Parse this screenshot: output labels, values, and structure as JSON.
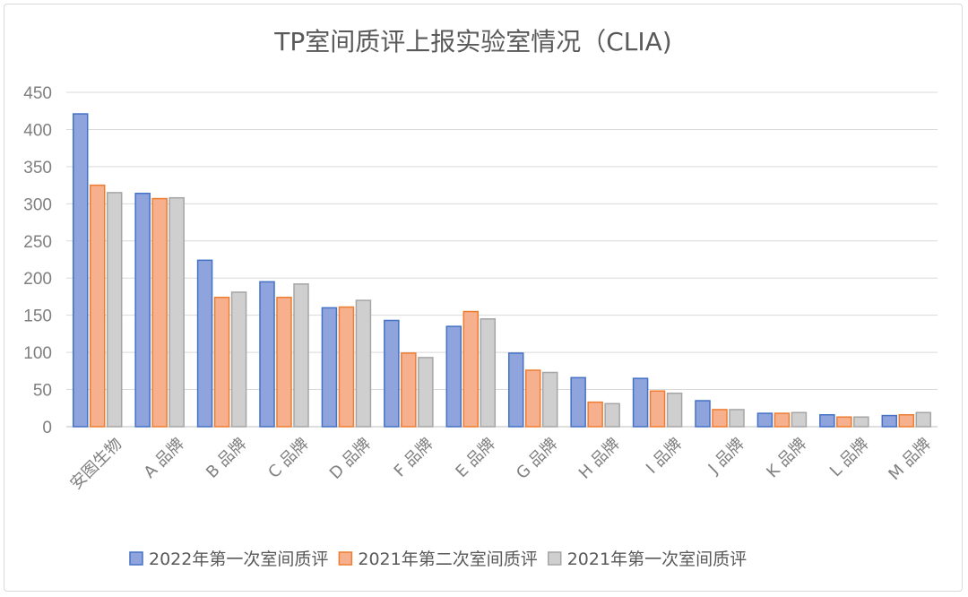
{
  "chart_data": {
    "type": "bar",
    "title": "TP室间质评上报实验室情况（CLIA)",
    "xlabel": "",
    "ylabel": "",
    "ylim": [
      0,
      450
    ],
    "yticks": [
      0,
      50,
      100,
      150,
      200,
      250,
      300,
      350,
      400,
      450
    ],
    "grid": true,
    "legend_position": "bottom",
    "categories": [
      "安图生物",
      "A 品牌",
      "B 品牌",
      "C 品牌",
      "D 品牌",
      "F 品牌",
      "E 品牌",
      "G 品牌",
      "H 品牌",
      "I 品牌",
      "J 品牌",
      "K 品牌",
      "L 品牌",
      "M 品牌"
    ],
    "series": [
      {
        "name": "2022年第一次室间质评",
        "color": "#8FA3DC",
        "stroke": "#4472C4",
        "values": [
          421,
          314,
          224,
          195,
          160,
          143,
          135,
          99,
          66,
          65,
          35,
          18,
          16,
          15
        ]
      },
      {
        "name": "2021年第二次室间质评",
        "color": "#F6B08E",
        "stroke": "#ED7D31",
        "values": [
          325,
          307,
          174,
          174,
          161,
          99,
          155,
          76,
          33,
          48,
          23,
          18,
          13,
          16
        ]
      },
      {
        "name": "2021年第一次室间质评",
        "color": "#CFCFCF",
        "stroke": "#A5A5A5",
        "values": [
          315,
          308,
          181,
          192,
          170,
          93,
          145,
          73,
          31,
          45,
          23,
          19,
          13,
          19
        ]
      }
    ]
  }
}
